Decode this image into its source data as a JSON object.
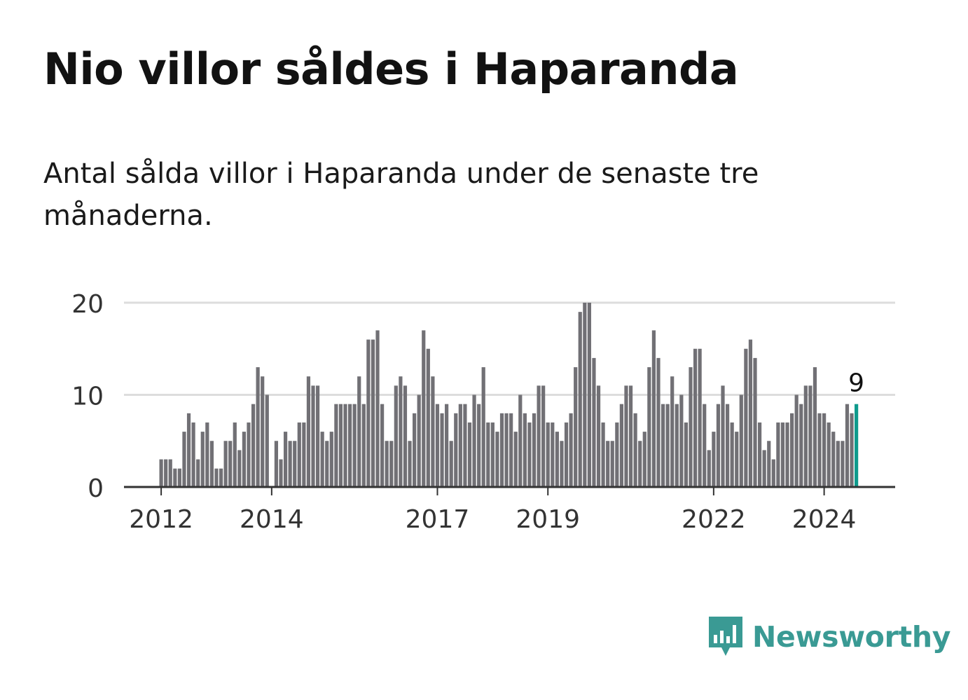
{
  "header": {
    "title": "Nio villor såldes i Haparanda",
    "subtitle": "Antal sålda villor i Haparanda under de senaste tre månaderna."
  },
  "brand": {
    "name": "Newsworthy",
    "icon": "newsworthy-logo-icon",
    "color": "#3a9a94"
  },
  "colors": {
    "bar": "#717075",
    "highlight": "#0e9a8c",
    "grid": "#dddddd",
    "axis": "#333333",
    "text": "#333333"
  },
  "chart_data": {
    "type": "bar",
    "title": "Nio villor såldes i Haparanda",
    "xlabel": "",
    "ylabel": "",
    "ylim": [
      0,
      20
    ],
    "yticks": [
      0,
      10,
      20
    ],
    "xticks": [
      {
        "label": "2012",
        "index": 0
      },
      {
        "label": "2014",
        "index": 24
      },
      {
        "label": "2017",
        "index": 60
      },
      {
        "label": "2019",
        "index": 84
      },
      {
        "label": "2022",
        "index": 120
      },
      {
        "label": "2024",
        "index": 144
      }
    ],
    "categories_start": "2012-01",
    "values": [
      3,
      3,
      3,
      2,
      2,
      6,
      8,
      7,
      3,
      6,
      7,
      5,
      2,
      2,
      5,
      5,
      7,
      4,
      6,
      7,
      9,
      13,
      12,
      10,
      0,
      5,
      3,
      6,
      5,
      5,
      7,
      7,
      12,
      11,
      11,
      6,
      5,
      6,
      9,
      9,
      9,
      9,
      9,
      12,
      9,
      16,
      16,
      17,
      9,
      5,
      5,
      11,
      12,
      11,
      5,
      8,
      10,
      17,
      15,
      12,
      9,
      8,
      9,
      5,
      8,
      9,
      9,
      7,
      10,
      9,
      13,
      7,
      7,
      6,
      8,
      8,
      8,
      6,
      10,
      8,
      7,
      8,
      11,
      11,
      7,
      7,
      6,
      5,
      7,
      8,
      13,
      19,
      20,
      20,
      14,
      11,
      7,
      5,
      5,
      7,
      9,
      11,
      11,
      8,
      5,
      6,
      13,
      17,
      14,
      9,
      9,
      12,
      9,
      10,
      7,
      13,
      15,
      15,
      9,
      4,
      6,
      9,
      11,
      9,
      7,
      6,
      10,
      15,
      16,
      14,
      7,
      4,
      5,
      3,
      7,
      7,
      7,
      8,
      10,
      9,
      11,
      11,
      13,
      8,
      8,
      7,
      6,
      5,
      5,
      9,
      8,
      9
    ],
    "highlight_index": 151,
    "annotation": {
      "label": "9",
      "index": 151
    }
  }
}
